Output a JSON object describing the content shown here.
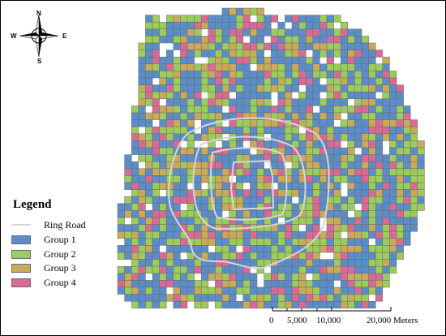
{
  "legend": {
    "title": "Legend",
    "ring_road_label": "Ring Road",
    "groups": [
      {
        "label": "Group 1",
        "color": "#5b8dc8"
      },
      {
        "label": "Group 2",
        "color": "#9ccc5c"
      },
      {
        "label": "Group 3",
        "color": "#c8aa5a"
      },
      {
        "label": "Group 4",
        "color": "#d96a96"
      }
    ]
  },
  "ring_road_color": "#d6d6dc",
  "compass": {
    "n": "N",
    "s": "S",
    "e": "E",
    "w": "W"
  },
  "scale_bar": {
    "labels": [
      "0",
      "5,000",
      "10,000",
      "20,000 Meters"
    ]
  }
}
